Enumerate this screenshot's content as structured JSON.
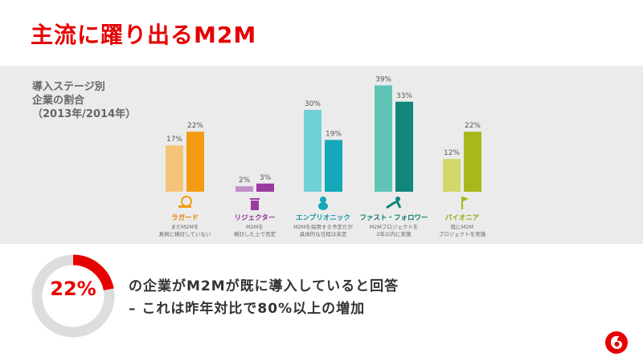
{
  "slide": {
    "title": "主流に躍り出るM2M",
    "side_label": "導入ステージ別\n企業の割合\n（2013年/2014年）"
  },
  "chart_data": {
    "type": "bar",
    "categories": [
      "ラガード",
      "リジェクター",
      "エンプリオニック",
      "ファスト・フォロワー",
      "パイオニア"
    ],
    "descriptions": [
      "まだM2Mを\n真剣に検討していない",
      "M2Mを\n検討した上で否定",
      "M2Mを採用する予定だが\n具体的な日程は未定",
      "M2Mプロジェクトを\n2年以内に実施",
      "既にM2M\nプロジェクトを実施"
    ],
    "series": [
      {
        "values": [
          17,
          2,
          30,
          39,
          12
        ]
      },
      {
        "values": [
          22,
          3,
          19,
          33,
          22
        ]
      }
    ],
    "value_suffix": "%",
    "colors": {
      "light": [
        "#f6c478",
        "#c38dc6",
        "#6fd0d6",
        "#5fc4b4",
        "#d2d86a"
      ],
      "dark": [
        "#f39c12",
        "#9b3aa0",
        "#14a8b8",
        "#11867a",
        "#a7b81a"
      ],
      "label": [
        "#e67e00",
        "#8e2f94",
        "#0f97a8",
        "#0e7a6e",
        "#97a818"
      ]
    },
    "icons": [
      "snail-icon",
      "trash-can-icon",
      "baby-icon",
      "runner-icon",
      "flag-climber-icon"
    ],
    "ylim": [
      0,
      42
    ]
  },
  "stat": {
    "value": "22%",
    "fraction": 0.22,
    "line1": "の企業がM2Mが既に導入していると回答",
    "line2": "– これは昨年対比で80%以上の増加"
  },
  "colors": {
    "accent": "#e60000",
    "ring_bg": "#dddddd"
  }
}
